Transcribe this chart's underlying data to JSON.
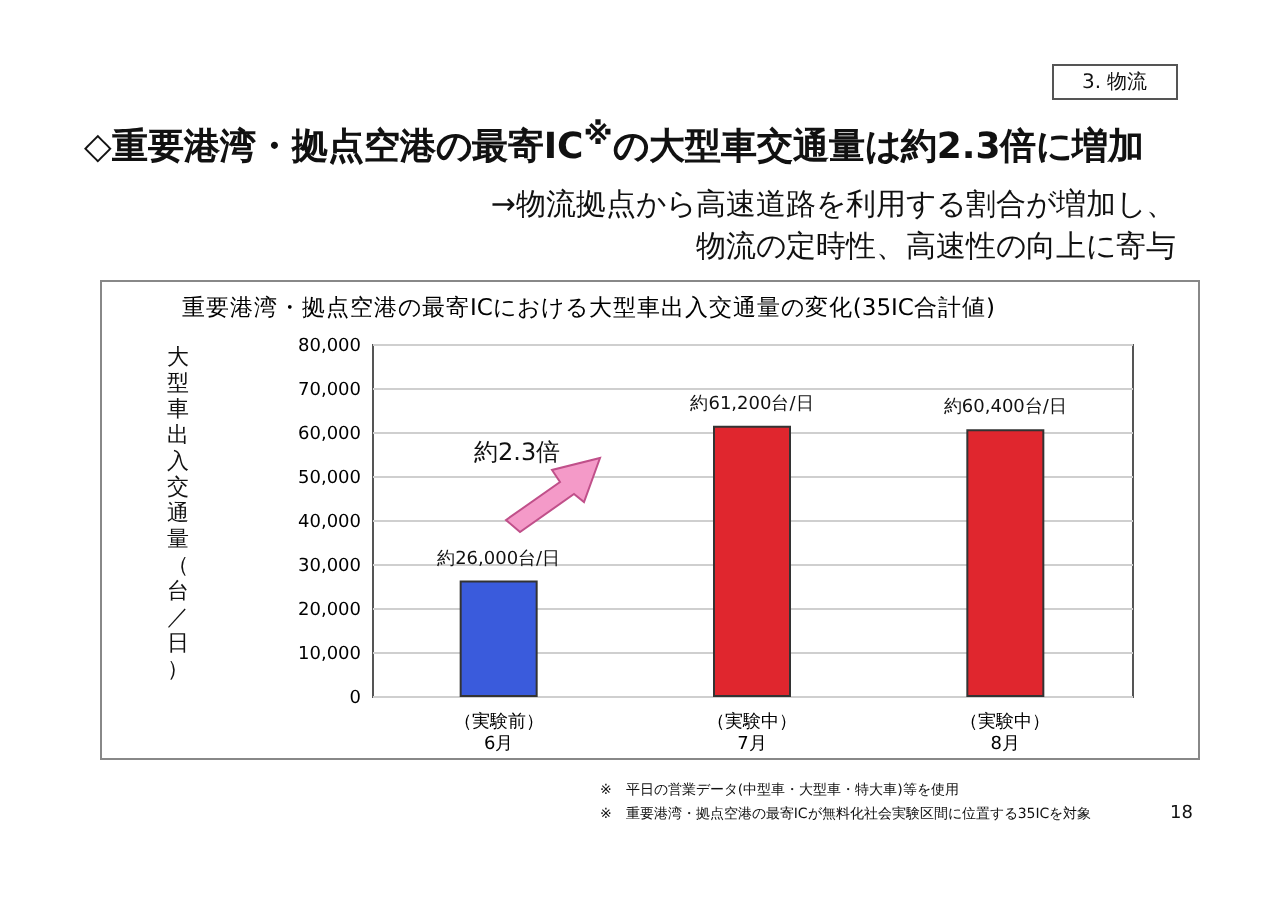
{
  "chart_data": {
    "type": "bar",
    "title": "重要港湾・拠点空港の最寄ICにおける大型車出入交通量の変化(35IC合計値)",
    "ylabel": "大型車出入交通量（台／日）",
    "categories": [
      "（実験前）\n6月",
      "（実験中）\n7月",
      "（実験中）\n8月"
    ],
    "values": [
      26000,
      61200,
      60400
    ],
    "colors": [
      "#3a5bdc",
      "#e0262e",
      "#e0262e"
    ],
    "value_labels": [
      "約26,000台/日",
      "約61,200台/日",
      "約60,400台/日"
    ],
    "ylim": [
      0,
      80000
    ],
    "yticks": [
      0,
      {
        "value": 10000,
        "label": "10,000"
      },
      {
        "value": 20000,
        "label": "20,000"
      },
      {
        "value": 30000,
        "label": "30,000"
      },
      {
        "value": 40000,
        "label": "40,000"
      },
      {
        "value": 50000,
        "label": "50,000"
      },
      {
        "value": 60000,
        "label": "60,000"
      },
      {
        "value": 70000,
        "label": "70,000"
      },
      {
        "value": 80000,
        "label": "80,000"
      }
    ],
    "grid": "y",
    "annotations": [
      "3. 物流",
      "◇重要港湾・拠点空港の最寄IC$^{※}$の大型車交通量は約2.3倍に増加",
      "→物流拠点から高速道路を利用する割合が増加し、",
      "物流の定時性、高速性の向上に寄与",
      "約2.3倍",
      "※　平日の営業データ(中型車・大型車・特大車)等を使用",
      "※　重要港湾・拠点空港の最寄ICが無料化社会実験区間に位置する35ICを対象",
      "18"
    ]
  }
}
